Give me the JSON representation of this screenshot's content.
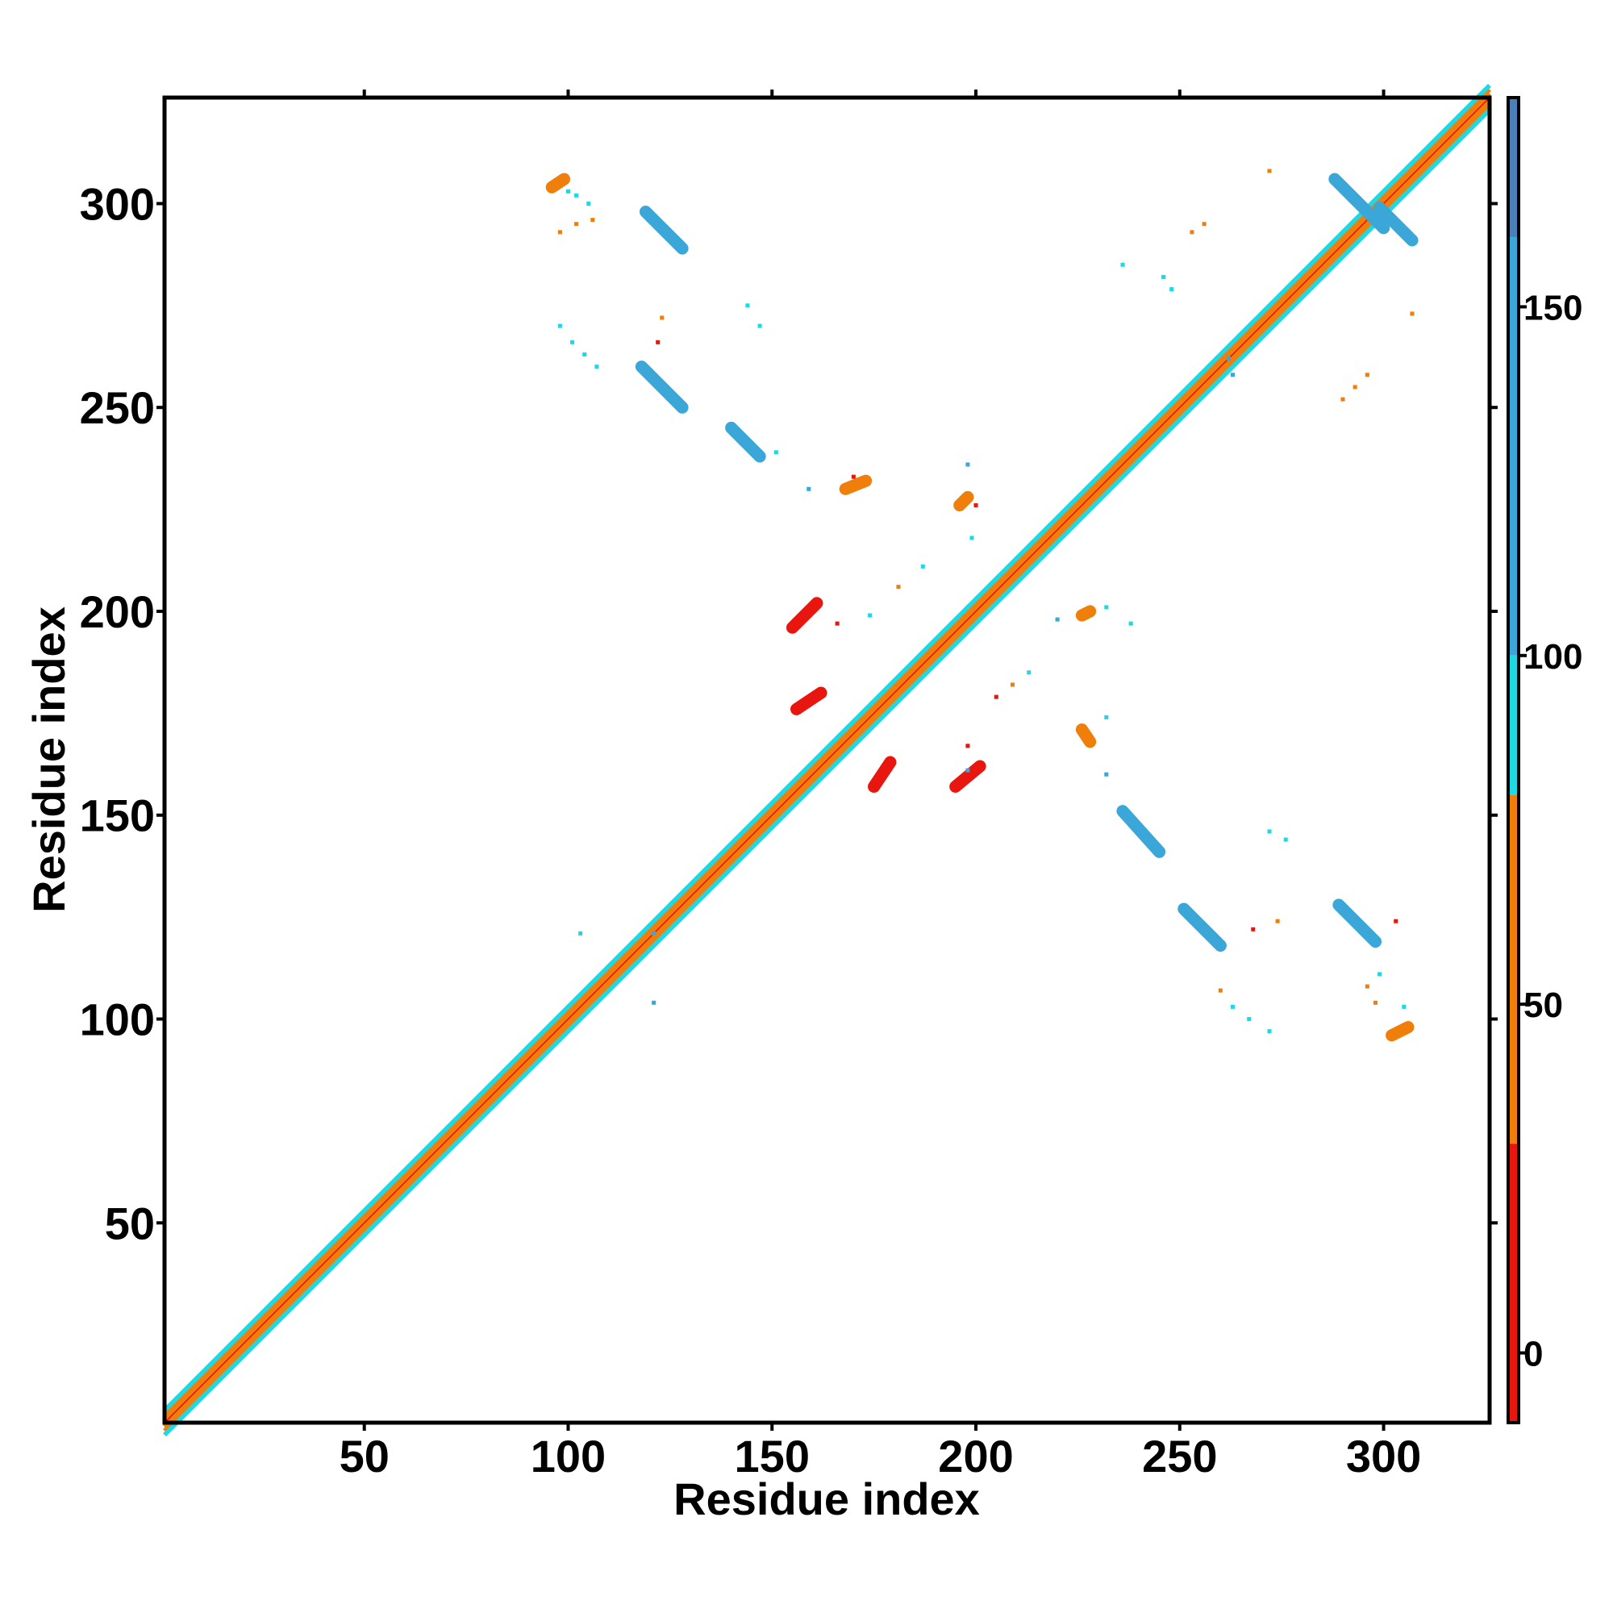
{
  "chart_data": {
    "type": "heatmap",
    "title": "",
    "xlabel": "Residue index",
    "ylabel": "Residue index",
    "xlim": [
      1,
      326
    ],
    "ylim": [
      1,
      326
    ],
    "x_ticks": [
      50,
      100,
      150,
      200,
      250,
      300
    ],
    "y_ticks": [
      50,
      100,
      150,
      200,
      250,
      300
    ],
    "grid": false,
    "colorbar": {
      "range": [
        -10,
        180
      ],
      "ticks": [
        0,
        50,
        100,
        150
      ],
      "bands": [
        {
          "from": -10,
          "to": 30,
          "color": "#e8160f"
        },
        {
          "from": 30,
          "to": 80,
          "color": "#ef7f0a"
        },
        {
          "from": 80,
          "to": 100,
          "color": "#1ed8e6"
        },
        {
          "from": 100,
          "to": 160,
          "color": "#3aa7d8"
        },
        {
          "from": 160,
          "to": 180,
          "color": "#4a7fb8"
        }
      ]
    },
    "diagonal_band": {
      "from": 1,
      "to": 326
    },
    "segments": [
      {
        "x1": 119,
        "y1": 298,
        "x2": 128,
        "y2": 289,
        "value": 150
      },
      {
        "x1": 118,
        "y1": 260,
        "x2": 128,
        "y2": 250,
        "value": 150
      },
      {
        "x1": 140,
        "y1": 245,
        "x2": 147,
        "y2": 238,
        "value": 150
      },
      {
        "x1": 236,
        "y1": 151,
        "x2": 245,
        "y2": 141,
        "value": 150
      },
      {
        "x1": 251,
        "y1": 127,
        "x2": 260,
        "y2": 118,
        "value": 150
      },
      {
        "x1": 289,
        "y1": 128,
        "x2": 298,
        "y2": 119,
        "value": 150
      },
      {
        "x1": 288,
        "y1": 306,
        "x2": 300,
        "y2": 294,
        "value": 150
      },
      {
        "x1": 299,
        "y1": 299,
        "x2": 307,
        "y2": 291,
        "value": 150
      },
      {
        "x1": 155,
        "y1": 196,
        "x2": 161,
        "y2": 202,
        "value": 5
      },
      {
        "x1": 156,
        "y1": 176,
        "x2": 162,
        "y2": 180,
        "value": 5
      },
      {
        "x1": 175,
        "y1": 157,
        "x2": 179,
        "y2": 163,
        "value": 5
      },
      {
        "x1": 195,
        "y1": 157,
        "x2": 201,
        "y2": 162,
        "value": 5
      },
      {
        "x1": 96,
        "y1": 304,
        "x2": 99,
        "y2": 306,
        "value": 45
      },
      {
        "x1": 302,
        "y1": 96,
        "x2": 306,
        "y2": 98,
        "value": 45
      },
      {
        "x1": 226,
        "y1": 199,
        "x2": 228,
        "y2": 200,
        "value": 40
      },
      {
        "x1": 196,
        "y1": 226,
        "x2": 198,
        "y2": 228,
        "value": 40
      },
      {
        "x1": 226,
        "y1": 171,
        "x2": 228,
        "y2": 168,
        "value": 30
      },
      {
        "x1": 168,
        "y1": 230,
        "x2": 173,
        "y2": 232,
        "value": 30
      }
    ],
    "points": [
      {
        "x": 100,
        "y": 303,
        "value": 90
      },
      {
        "x": 102,
        "y": 302,
        "value": 90
      },
      {
        "x": 105,
        "y": 300,
        "value": 90
      },
      {
        "x": 98,
        "y": 293,
        "value": 40
      },
      {
        "x": 102,
        "y": 295,
        "value": 40
      },
      {
        "x": 106,
        "y": 296,
        "value": 40
      },
      {
        "x": 98,
        "y": 270,
        "value": 90
      },
      {
        "x": 101,
        "y": 266,
        "value": 90
      },
      {
        "x": 104,
        "y": 263,
        "value": 90
      },
      {
        "x": 107,
        "y": 260,
        "value": 90
      },
      {
        "x": 123,
        "y": 272,
        "value": 40
      },
      {
        "x": 122,
        "y": 266,
        "value": 10
      },
      {
        "x": 144,
        "y": 275,
        "value": 90
      },
      {
        "x": 147,
        "y": 270,
        "value": 90
      },
      {
        "x": 151,
        "y": 239,
        "value": 90
      },
      {
        "x": 159,
        "y": 230,
        "value": 120
      },
      {
        "x": 170,
        "y": 233,
        "value": 20
      },
      {
        "x": 198,
        "y": 236,
        "value": 120
      },
      {
        "x": 200,
        "y": 226,
        "value": 20
      },
      {
        "x": 199,
        "y": 218,
        "value": 90
      },
      {
        "x": 187,
        "y": 211,
        "value": 90
      },
      {
        "x": 181,
        "y": 206,
        "value": 30
      },
      {
        "x": 174,
        "y": 199,
        "value": 90
      },
      {
        "x": 166,
        "y": 197,
        "value": 20
      },
      {
        "x": 213,
        "y": 185,
        "value": 90
      },
      {
        "x": 209,
        "y": 182,
        "value": 30
      },
      {
        "x": 205,
        "y": 179,
        "value": 20
      },
      {
        "x": 198,
        "y": 167,
        "value": 20
      },
      {
        "x": 198,
        "y": 161,
        "value": 120
      },
      {
        "x": 232,
        "y": 201,
        "value": 90
      },
      {
        "x": 238,
        "y": 197,
        "value": 90
      },
      {
        "x": 220,
        "y": 198,
        "value": 120
      },
      {
        "x": 232,
        "y": 174,
        "value": 90
      },
      {
        "x": 232,
        "y": 160,
        "value": 120
      },
      {
        "x": 260,
        "y": 107,
        "value": 30
      },
      {
        "x": 263,
        "y": 103,
        "value": 90
      },
      {
        "x": 267,
        "y": 100,
        "value": 90
      },
      {
        "x": 272,
        "y": 97,
        "value": 90
      },
      {
        "x": 272,
        "y": 146,
        "value": 90
      },
      {
        "x": 276,
        "y": 144,
        "value": 90
      },
      {
        "x": 268,
        "y": 122,
        "value": 20
      },
      {
        "x": 274,
        "y": 124,
        "value": 40
      },
      {
        "x": 296,
        "y": 108,
        "value": 40
      },
      {
        "x": 298,
        "y": 104,
        "value": 40
      },
      {
        "x": 299,
        "y": 111,
        "value": 90
      },
      {
        "x": 305,
        "y": 103,
        "value": 90
      },
      {
        "x": 303,
        "y": 124,
        "value": 20
      },
      {
        "x": 121,
        "y": 121,
        "value": 120
      },
      {
        "x": 121,
        "y": 104,
        "value": 120
      },
      {
        "x": 103,
        "y": 121,
        "value": 90
      },
      {
        "x": 290,
        "y": 252,
        "value": 40
      },
      {
        "x": 293,
        "y": 255,
        "value": 40
      },
      {
        "x": 296,
        "y": 258,
        "value": 40
      },
      {
        "x": 262,
        "y": 262,
        "value": 120
      },
      {
        "x": 263,
        "y": 258,
        "value": 120
      },
      {
        "x": 272,
        "y": 308,
        "value": 45
      },
      {
        "x": 307,
        "y": 273,
        "value": 45
      },
      {
        "x": 253,
        "y": 293,
        "value": 30
      },
      {
        "x": 256,
        "y": 295,
        "value": 30
      },
      {
        "x": 236,
        "y": 285,
        "value": 90
      },
      {
        "x": 246,
        "y": 282,
        "value": 90
      },
      {
        "x": 248,
        "y": 279,
        "value": 90
      }
    ]
  }
}
